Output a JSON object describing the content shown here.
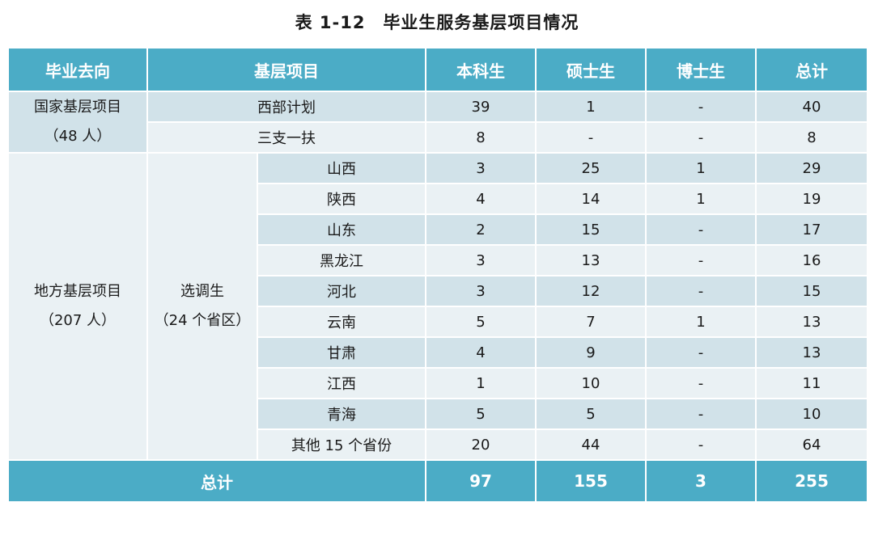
{
  "title": "表 1-12　毕业生服务基层项目情况",
  "headers": [
    "毕业去向",
    "基层项目",
    "本科生",
    "硕士生",
    "博士生",
    "总计"
  ],
  "national": {
    "label": "国家基层项目",
    "count": "（48 人）",
    "rows": [
      {
        "project": "西部计划",
        "bachelor": "39",
        "master": "1",
        "doctor": "-",
        "total": "40"
      },
      {
        "project": "三支一扶",
        "bachelor": "8",
        "master": "-",
        "doctor": "-",
        "total": "8"
      }
    ]
  },
  "local": {
    "label": "地方基层项目",
    "count": "（207 人）",
    "sub_label": "选调生",
    "sub_count": "（24 个省区）",
    "rows": [
      {
        "project": "山西",
        "bachelor": "3",
        "master": "25",
        "doctor": "1",
        "total": "29"
      },
      {
        "project": "陕西",
        "bachelor": "4",
        "master": "14",
        "doctor": "1",
        "total": "19"
      },
      {
        "project": "山东",
        "bachelor": "2",
        "master": "15",
        "doctor": "-",
        "total": "17"
      },
      {
        "project": "黑龙江",
        "bachelor": "3",
        "master": "13",
        "doctor": "-",
        "total": "16"
      },
      {
        "project": "河北",
        "bachelor": "3",
        "master": "12",
        "doctor": "-",
        "total": "15"
      },
      {
        "project": "云南",
        "bachelor": "5",
        "master": "7",
        "doctor": "1",
        "total": "13"
      },
      {
        "project": "甘肃",
        "bachelor": "4",
        "master": "9",
        "doctor": "-",
        "total": "13"
      },
      {
        "project": "江西",
        "bachelor": "1",
        "master": "10",
        "doctor": "-",
        "total": "11"
      },
      {
        "project": "青海",
        "bachelor": "5",
        "master": "5",
        "doctor": "-",
        "total": "10"
      },
      {
        "project": "其他 15 个省份",
        "bachelor": "20",
        "master": "44",
        "doctor": "-",
        "total": "64"
      }
    ]
  },
  "footer": {
    "label": "总计",
    "bachelor": "97",
    "master": "155",
    "doctor": "3",
    "total": "255"
  },
  "colors": {
    "header_bg": "#4bacc6",
    "row_light": "#eaf1f4",
    "row_mid": "#d1e2e9",
    "header_text": "#ffffff"
  }
}
